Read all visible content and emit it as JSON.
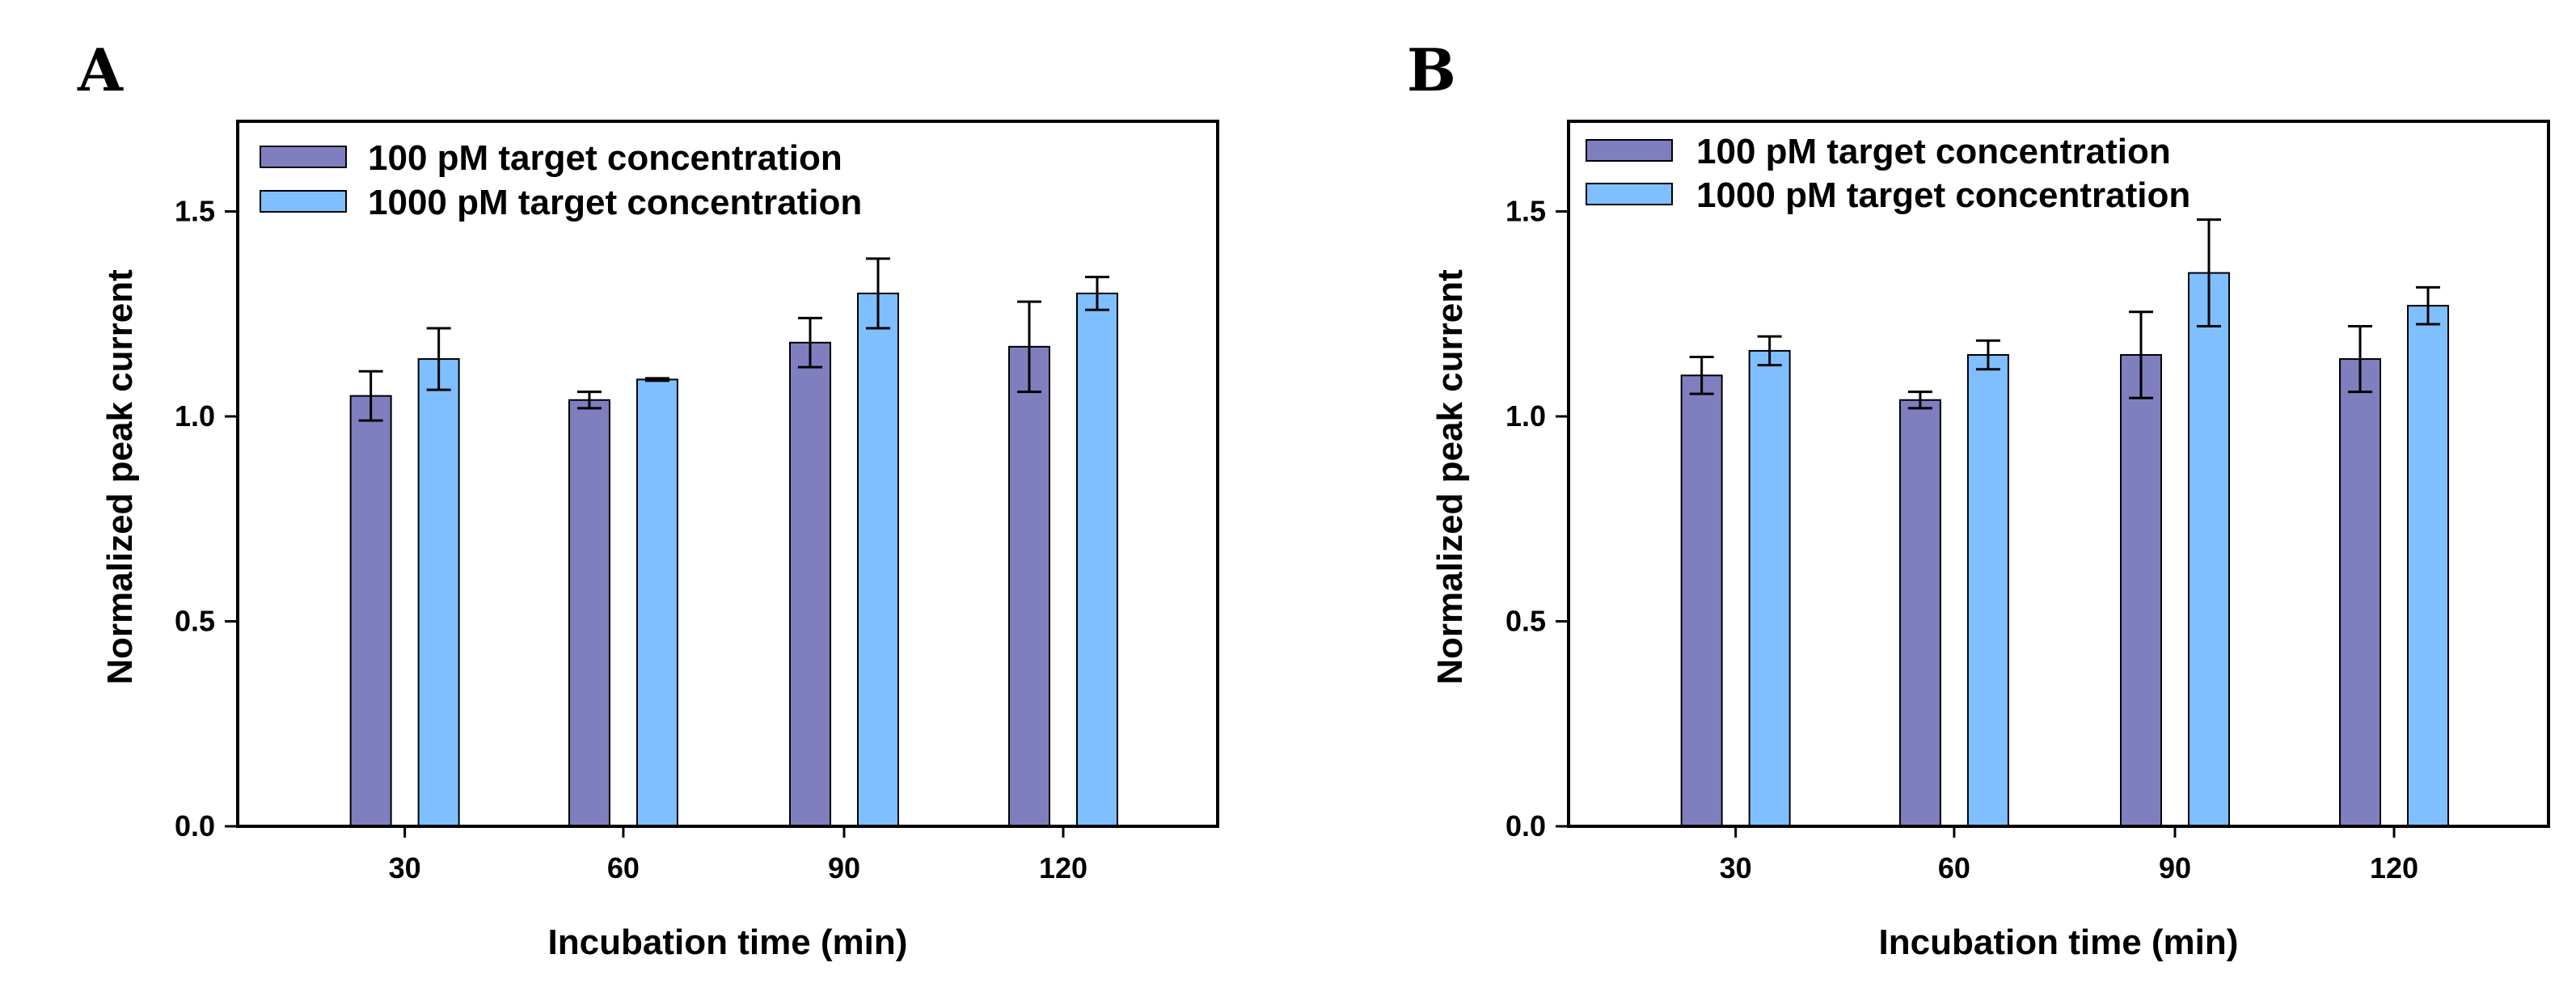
{
  "colors": {
    "series1": "#7F7FBF",
    "series2": "#7FBFFF",
    "stroke": "#000000"
  },
  "chart_data": [
    {
      "panel": "A",
      "type": "bar",
      "xlabel": "Incubation time (min)",
      "ylabel": "Normalized peak current",
      "ylim": [
        0,
        1.72
      ],
      "yticks": [
        0.0,
        0.5,
        1.0,
        1.5
      ],
      "ytick_labels": [
        "0.0",
        "0.5",
        "1.0",
        "1.5"
      ],
      "categories": [
        "30",
        "60",
        "90",
        "120"
      ],
      "legend_position": "top-left",
      "series": [
        {
          "name": "100 pM target concentration",
          "values": [
            1.05,
            1.04,
            1.18,
            1.17
          ],
          "errors": [
            0.06,
            0.02,
            0.06,
            0.11
          ]
        },
        {
          "name": "1000 pM target concentration",
          "values": [
            1.14,
            1.09,
            1.3,
            1.3
          ],
          "errors": [
            0.075,
            0.003,
            0.085,
            0.04
          ]
        }
      ]
    },
    {
      "panel": "B",
      "type": "bar",
      "xlabel": "Incubation time (min)",
      "ylabel": "Normalized peak current",
      "ylim": [
        0,
        1.72
      ],
      "yticks": [
        0.0,
        0.5,
        1.0,
        1.5
      ],
      "ytick_labels": [
        "0.0",
        "0.5",
        "1.0",
        "1.5"
      ],
      "categories": [
        "30",
        "60",
        "90",
        "120"
      ],
      "legend_position": "top-left",
      "series": [
        {
          "name": "100 pM target concentration",
          "values": [
            1.1,
            1.04,
            1.15,
            1.14
          ],
          "errors": [
            0.045,
            0.02,
            0.105,
            0.08
          ]
        },
        {
          "name": "1000 pM target concentration",
          "values": [
            1.16,
            1.15,
            1.35,
            1.27
          ],
          "errors": [
            0.035,
            0.035,
            0.13,
            0.045
          ]
        }
      ]
    }
  ]
}
